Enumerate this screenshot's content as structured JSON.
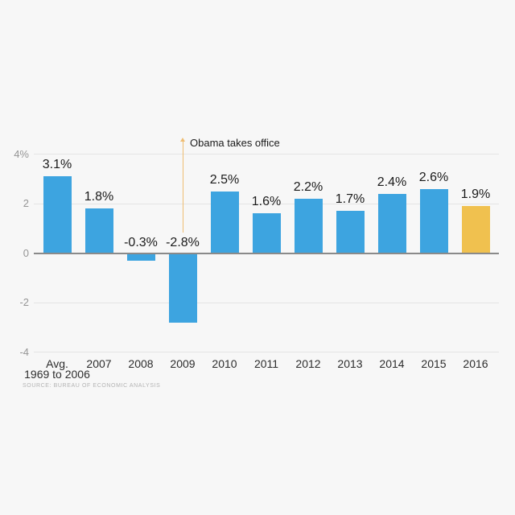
{
  "page": {
    "background": "#f7f7f7",
    "source_note": "SOURCE: BUREAU OF ECONOMIC ANALYSIS"
  },
  "chart_data": {
    "type": "bar",
    "title": "",
    "xlabel": "",
    "ylabel": "",
    "ylim": [
      -4,
      4
    ],
    "grid": true,
    "legend": false,
    "categories": [
      "Avg. 1969 to 2006",
      "2007",
      "2008",
      "2009",
      "2010",
      "2011",
      "2012",
      "2013",
      "2014",
      "2015",
      "2016"
    ],
    "x_tick_lines": [
      [
        "Avg.",
        "1969 to 2006"
      ],
      [
        "2007"
      ],
      [
        "2008"
      ],
      [
        "2009"
      ],
      [
        "2010"
      ],
      [
        "2011"
      ],
      [
        "2012"
      ],
      [
        "2013"
      ],
      [
        "2014"
      ],
      [
        "2015"
      ],
      [
        "2016"
      ]
    ],
    "values": [
      3.1,
      1.8,
      -0.3,
      -2.8,
      2.5,
      1.6,
      2.2,
      1.7,
      2.4,
      2.6,
      1.9
    ],
    "value_labels": [
      "3.1%",
      "1.8%",
      "-0.3%",
      "-2.8%",
      "2.5%",
      "1.6%",
      "2.2%",
      "1.7%",
      "2.4%",
      "2.6%",
      "1.9%"
    ],
    "y_ticks": [
      {
        "value": 4,
        "label": "4%"
      },
      {
        "value": 2,
        "label": "2"
      },
      {
        "value": 0,
        "label": "0"
      },
      {
        "value": -2,
        "label": "-2"
      },
      {
        "value": -4,
        "label": "-4"
      }
    ],
    "colors": {
      "bar": "#3da4e0",
      "highlight": "#f0c14f",
      "annotation_line": "#efbd72",
      "gridline": "#e4e4e4",
      "zero_line": "#8a8a8a"
    },
    "highlight_index": 10,
    "annotation": {
      "text": "Obama takes office",
      "at_category": "2009"
    }
  }
}
